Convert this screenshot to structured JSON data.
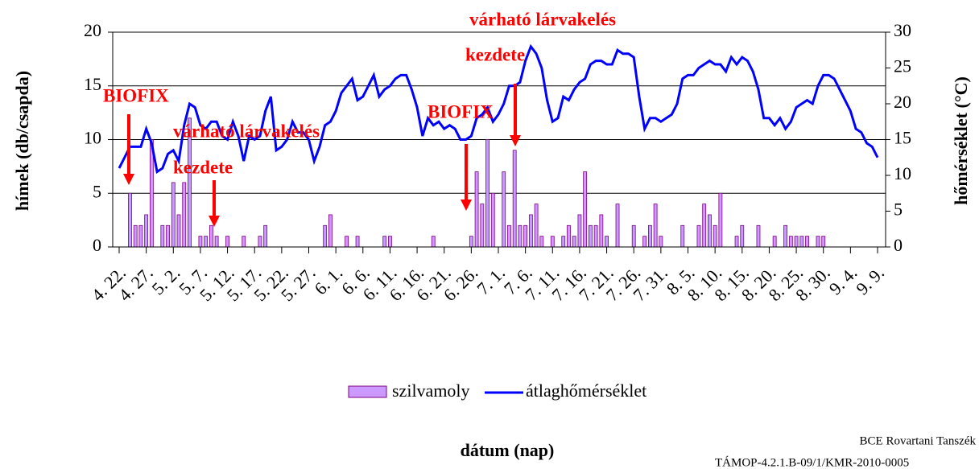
{
  "chart_data": {
    "type": "bar",
    "annotations": [
      "BIOFIX",
      "várható lárvakelés",
      "kezdete",
      "BIOFIX",
      "várható lárvakelés",
      "kezdete"
    ],
    "y_label": "hímek (db/csapda)",
    "y2_label": "hőmérséklet (°C)",
    "x_label": "dátum (nap)",
    "credits": [
      "BCE Rovartani Tanszék",
      "TÁMOP-4.2.1.B-09/1/KMR-2010-0005"
    ],
    "categories": [
      "4. 22.",
      null,
      null,
      null,
      null,
      "4. 27.",
      null,
      null,
      null,
      null,
      "5. 2.",
      null,
      null,
      null,
      null,
      "5. 7.",
      null,
      null,
      null,
      null,
      "5. 12.",
      null,
      null,
      null,
      null,
      "5. 17.",
      null,
      null,
      null,
      null,
      "5. 22.",
      null,
      null,
      null,
      null,
      "5. 27.",
      null,
      null,
      null,
      null,
      "6. 1.",
      null,
      null,
      null,
      null,
      "6. 6.",
      null,
      null,
      null,
      null,
      "6. 11.",
      null,
      null,
      null,
      null,
      "6. 16.",
      null,
      null,
      null,
      null,
      "6. 21.",
      null,
      null,
      null,
      null,
      "6. 26.",
      null,
      null,
      null,
      null,
      "7. 1.",
      null,
      null,
      null,
      null,
      "7. 6.",
      null,
      null,
      null,
      null,
      "7. 11.",
      null,
      null,
      null,
      null,
      "7. 16.",
      null,
      null,
      null,
      null,
      "7. 21.",
      null,
      null,
      null,
      null,
      "7. 26.",
      null,
      null,
      null,
      null,
      "7. 31.",
      null,
      null,
      null,
      null,
      "8. 5.",
      null,
      null,
      null,
      null,
      "8. 10.",
      null,
      null,
      null,
      null,
      "8. 15.",
      null,
      null,
      null,
      null,
      "8. 20.",
      null,
      null,
      null,
      null,
      "8. 25.",
      null,
      null,
      null,
      null,
      "8. 30.",
      null,
      null,
      null,
      null,
      "9. 4.",
      null,
      null,
      null,
      null,
      "9. 9."
    ],
    "series": [
      {
        "name": "szilvamoly",
        "color": "#cc99ff",
        "values": [
          0,
          0,
          5,
          2,
          2,
          3,
          10,
          0,
          2,
          2,
          6,
          3,
          6,
          12,
          0,
          1,
          1,
          2,
          1,
          0,
          1,
          0,
          0,
          1,
          0,
          0,
          1,
          2,
          0,
          0,
          0,
          0,
          0,
          0,
          0,
          0,
          0,
          0,
          2,
          3,
          0,
          0,
          1,
          0,
          1,
          0,
          0,
          0,
          0,
          1,
          1,
          0,
          0,
          0,
          0,
          0,
          0,
          0,
          1,
          0,
          0,
          0,
          0,
          0,
          0,
          1,
          7,
          4,
          10,
          5,
          0,
          7,
          2,
          9,
          2,
          2,
          3,
          4,
          1,
          0,
          1,
          0,
          1,
          2,
          1,
          3,
          7,
          2,
          2,
          3,
          1,
          0,
          4,
          0,
          0,
          2,
          0,
          1,
          2,
          4,
          1,
          0,
          0,
          0,
          2,
          0,
          0,
          2,
          4,
          3,
          2,
          5,
          0,
          0,
          1,
          2,
          0,
          0,
          2,
          0,
          0,
          1,
          0,
          2,
          1,
          1,
          1,
          1,
          0,
          1,
          1,
          0,
          0,
          0,
          0,
          0,
          0,
          0,
          0,
          0,
          0
        ]
      },
      {
        "name": "átlaghőmérséklet",
        "type": "line",
        "axis": "y2",
        "color": "#0000ff",
        "values": [
          11,
          12.5,
          14,
          14,
          14,
          16.5,
          14.5,
          10.5,
          11,
          13,
          13.5,
          12,
          17,
          20,
          19.5,
          17,
          16.5,
          17.5,
          17.5,
          15.5,
          15,
          17.5,
          15.5,
          12,
          15.5,
          15,
          15.5,
          19,
          21,
          13.5,
          14,
          15,
          17.5,
          16,
          16,
          15,
          12,
          14,
          17,
          17.5,
          19,
          21.5,
          22.5,
          23.5,
          20.5,
          21,
          22.5,
          24,
          21,
          22,
          22.5,
          23.5,
          24,
          24,
          22,
          19.5,
          15.5,
          18,
          17,
          17.5,
          16.5,
          17,
          16.5,
          15,
          15,
          15.5,
          18,
          18.5,
          19.5,
          17.5,
          18.5,
          20,
          22.5,
          22.5,
          23,
          26,
          28,
          27,
          25,
          20.5,
          17.5,
          18,
          21,
          20.5,
          22,
          23,
          23.5,
          25.5,
          26,
          26,
          25.5,
          25.5,
          27.5,
          27,
          27,
          26.5,
          21,
          16.5,
          18,
          18,
          17.5,
          18,
          18.5,
          20,
          23.5,
          24,
          24,
          25,
          25.5,
          26,
          25.5,
          25.5,
          24.5,
          26.5,
          25.5,
          26.5,
          26,
          24.5,
          22,
          18,
          18,
          17,
          18,
          16.5,
          17.5,
          19.5,
          20,
          20.5,
          20,
          22.5,
          24,
          24,
          23.5,
          22,
          20.5,
          19,
          16.5,
          16,
          14.5,
          14,
          12.5
        ]
      }
    ],
    "ylim": [
      0,
      20
    ],
    "yticks": [
      0,
      5,
      10,
      15,
      20
    ],
    "y2lim": [
      0,
      30
    ],
    "y2ticks": [
      0,
      5,
      10,
      15,
      20,
      25,
      30
    ],
    "grid": true
  }
}
